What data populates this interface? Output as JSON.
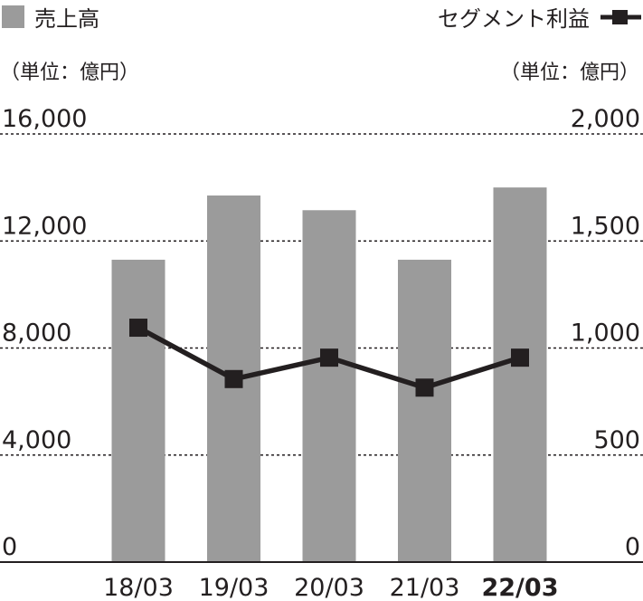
{
  "chart_data": {
    "type": "bar+line",
    "categories": [
      "18/03",
      "19/03",
      "20/03",
      "21/03",
      "22/03"
    ],
    "highlight_category": "22/03",
    "series": [
      {
        "name": "売上高",
        "type": "bar",
        "axis": "left",
        "color": "#9b9b9b",
        "values": [
          11300,
          13700,
          13150,
          11300,
          14000
        ]
      },
      {
        "name": "セグメント利益",
        "type": "line",
        "axis": "right",
        "color": "#231f20",
        "values": [
          1095,
          855,
          955,
          815,
          955
        ]
      }
    ],
    "left_axis": {
      "unit_label": "（単位：億円）",
      "range": [
        0,
        16000
      ],
      "ticks": [
        "0",
        "4,000",
        "8,000",
        "12,000",
        "16,000"
      ]
    },
    "right_axis": {
      "unit_label": "（単位：億円）",
      "range": [
        0,
        2000
      ],
      "ticks": [
        "0",
        "500",
        "1,000",
        "1,500",
        "2,000"
      ]
    },
    "legend": {
      "bar_label": "売上高",
      "line_label": "セグメント利益",
      "placement": "top"
    },
    "grid": true
  }
}
